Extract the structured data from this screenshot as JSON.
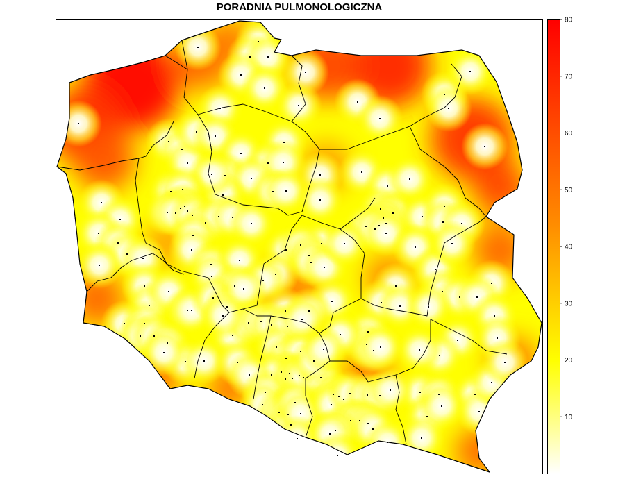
{
  "title": "PORADNIA PULMONOLOGICZNA",
  "legend": {
    "ticks": [
      10,
      20,
      30,
      40,
      50,
      60,
      70,
      80
    ],
    "min": 0,
    "max": 80,
    "colors": [
      "#ffffff",
      "#ffff00",
      "#ff8c00",
      "#ff0000"
    ]
  },
  "map": {
    "country": "Poland",
    "fill_scale": "distance-to-nearest-clinic",
    "point_color": "#000000",
    "boundary_color": "#000000"
  }
}
